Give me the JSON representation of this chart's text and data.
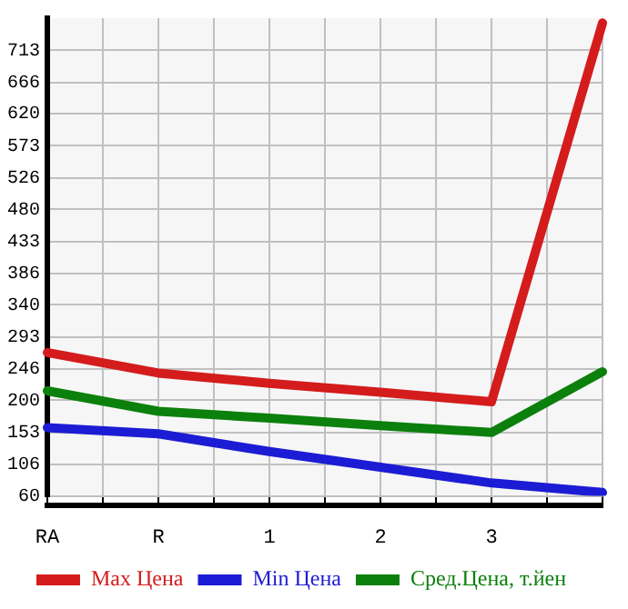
{
  "chart_data": {
    "type": "line",
    "categories": [
      "RA",
      "R",
      "1",
      "2",
      "3",
      null
    ],
    "series": [
      {
        "name": "Max Цена",
        "color": "#d41c1c",
        "values": [
          270,
          240,
          225,
          212,
          198,
          753
        ]
      },
      {
        "name": "Min Цена",
        "color": "#1c1cd4",
        "values": [
          160,
          151,
          125,
          102,
          79,
          65
        ]
      },
      {
        "name": "Сред.Цена, т.йен",
        "color": "#0c800c",
        "values": [
          214,
          184,
          174,
          163,
          153,
          242
        ]
      }
    ],
    "ylim": [
      60,
      760
    ],
    "yticks": [
      60,
      106,
      153,
      200,
      246,
      293,
      340,
      386,
      433,
      480,
      526,
      573,
      620,
      666,
      713
    ],
    "grid": true,
    "legend": "bottom",
    "marker": "none",
    "line_style": "solid"
  }
}
